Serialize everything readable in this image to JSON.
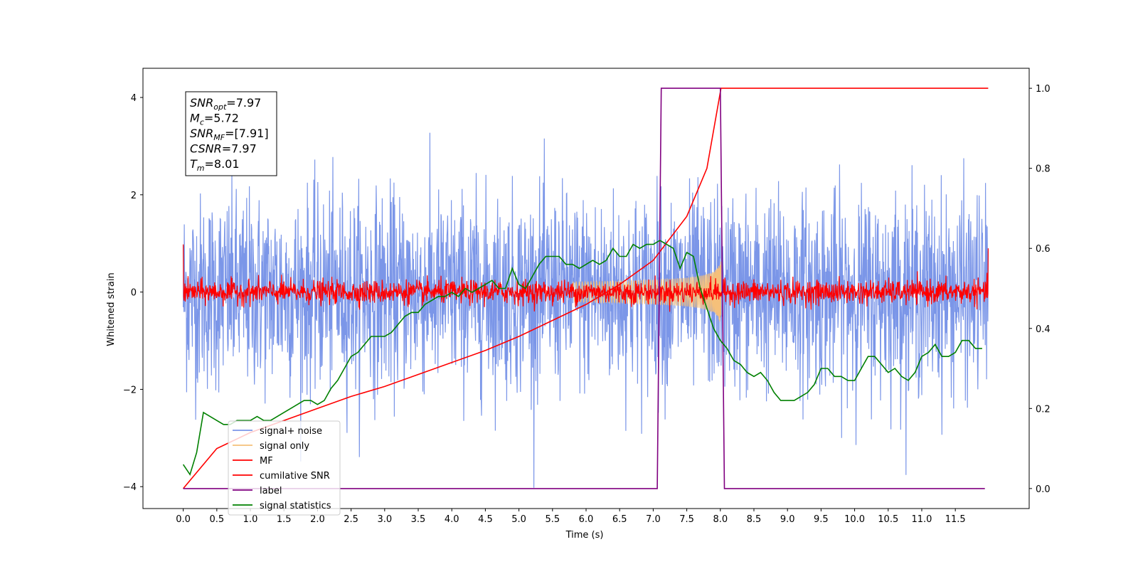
{
  "chart_data": {
    "type": "line",
    "xlabel": "Time (s)",
    "ylabel": "Whitened strain",
    "xlim": [
      -0.6,
      12.6
    ],
    "ylim_left": [
      -4.45,
      4.6
    ],
    "ylim_right": [
      -0.05,
      1.05
    ],
    "x_ticks": [
      0.0,
      0.5,
      1.0,
      1.5,
      2.0,
      2.5,
      3.0,
      3.5,
      4.0,
      4.5,
      5.0,
      5.5,
      6.0,
      6.5,
      7.0,
      7.5,
      8.0,
      8.5,
      9.0,
      9.5,
      10.0,
      10.5,
      11.0,
      11.5
    ],
    "x_tick_labels": [
      "0.0",
      "0.5",
      "1.0",
      "1.5",
      "2.0",
      "2.5",
      "3.0",
      "3.5",
      "4.0",
      "4.5",
      "5.0",
      "5.5",
      "6.0",
      "6.5",
      "7.0",
      "7.5",
      "8.0",
      "8.5",
      "9.0",
      "9.5",
      "10.0",
      "10.5",
      "11.0",
      "11.5"
    ],
    "y_left_ticks": [
      -4,
      -2,
      0,
      2,
      4
    ],
    "y_left_tick_labels": [
      "−4",
      "−2",
      "0",
      "2",
      "4"
    ],
    "y_right_ticks": [
      0.0,
      0.2,
      0.4,
      0.6,
      0.8,
      1.0
    ],
    "y_right_tick_labels": [
      "0.0",
      "0.2",
      "0.4",
      "0.6",
      "0.8",
      "1.0"
    ],
    "series": [
      {
        "name": "signal+ noise",
        "color": "#7b96e8",
        "axis": "left",
        "kind": "noise",
        "x_range": [
          0.0,
          11.99
        ],
        "amplitude_std": 1.0
      },
      {
        "name": "signal only",
        "color": "#f5c07a",
        "axis": "left",
        "kind": "chirp",
        "x_range": [
          5.8,
          8.01
        ],
        "envelope_peak": 0.8
      },
      {
        "name": "MF",
        "color": "#ff0000",
        "axis": "left",
        "kind": "noise",
        "x_range": [
          0.0,
          11.99
        ],
        "amplitude_std": 0.12
      },
      {
        "name": "cumilative SNR",
        "color": "#ff0000",
        "axis": "right",
        "kind": "curve",
        "x": [
          0.0,
          0.5,
          1.0,
          1.5,
          2.0,
          2.5,
          3.0,
          3.5,
          4.0,
          4.5,
          5.0,
          5.5,
          6.0,
          6.5,
          7.0,
          7.5,
          7.8,
          8.01,
          8.02,
          11.99
        ],
        "y": [
          0.0,
          0.1,
          0.14,
          0.17,
          0.2,
          0.23,
          0.255,
          0.285,
          0.315,
          0.345,
          0.38,
          0.42,
          0.46,
          0.51,
          0.57,
          0.68,
          0.8,
          1.0,
          1.0,
          1.0
        ]
      },
      {
        "name": "label",
        "color": "#800080",
        "axis": "right",
        "kind": "step",
        "x": [
          0.0,
          7.06,
          7.12,
          8.0,
          8.06,
          11.94
        ],
        "y": [
          0.0,
          0.0,
          1.0,
          1.0,
          0.0,
          0.0
        ]
      },
      {
        "name": "signal statistics",
        "color": "#008000",
        "axis": "right",
        "kind": "curve",
        "x": [
          0.0,
          0.1,
          0.2,
          0.3,
          0.4,
          0.5,
          0.6,
          0.7,
          0.8,
          0.9,
          1.0,
          1.1,
          1.2,
          1.3,
          1.4,
          1.5,
          1.6,
          1.7,
          1.8,
          1.9,
          2.0,
          2.1,
          2.2,
          2.3,
          2.4,
          2.5,
          2.6,
          2.7,
          2.8,
          2.9,
          3.0,
          3.1,
          3.2,
          3.3,
          3.4,
          3.5,
          3.6,
          3.7,
          3.8,
          3.9,
          4.0,
          4.1,
          4.2,
          4.3,
          4.4,
          4.5,
          4.6,
          4.7,
          4.8,
          4.9,
          5.0,
          5.1,
          5.2,
          5.3,
          5.4,
          5.5,
          5.6,
          5.7,
          5.8,
          5.9,
          6.0,
          6.1,
          6.2,
          6.3,
          6.4,
          6.5,
          6.6,
          6.7,
          6.8,
          6.9,
          7.0,
          7.1,
          7.2,
          7.3,
          7.4,
          7.5,
          7.6,
          7.7,
          7.8,
          7.9,
          8.0,
          8.1,
          8.2,
          8.3,
          8.4,
          8.5,
          8.6,
          8.7,
          8.8,
          8.9,
          9.0,
          9.1,
          9.2,
          9.3,
          9.4,
          9.5,
          9.6,
          9.7,
          9.8,
          9.9,
          10.0,
          10.1,
          10.2,
          10.3,
          10.4,
          10.5,
          10.6,
          10.7,
          10.8,
          10.9,
          11.0,
          11.1,
          11.2,
          11.3,
          11.4,
          11.5,
          11.6,
          11.7,
          11.8,
          11.9
        ],
        "y": [
          0.06,
          0.035,
          0.09,
          0.19,
          0.18,
          0.17,
          0.16,
          0.16,
          0.17,
          0.17,
          0.17,
          0.18,
          0.17,
          0.17,
          0.18,
          0.19,
          0.2,
          0.21,
          0.22,
          0.22,
          0.21,
          0.22,
          0.25,
          0.27,
          0.3,
          0.33,
          0.34,
          0.36,
          0.38,
          0.38,
          0.38,
          0.39,
          0.41,
          0.43,
          0.44,
          0.44,
          0.46,
          0.47,
          0.48,
          0.48,
          0.49,
          0.48,
          0.5,
          0.49,
          0.5,
          0.51,
          0.52,
          0.5,
          0.5,
          0.55,
          0.51,
          0.5,
          0.53,
          0.56,
          0.58,
          0.58,
          0.58,
          0.56,
          0.56,
          0.55,
          0.56,
          0.57,
          0.56,
          0.57,
          0.6,
          0.58,
          0.58,
          0.61,
          0.6,
          0.61,
          0.61,
          0.62,
          0.61,
          0.6,
          0.55,
          0.59,
          0.58,
          0.5,
          0.45,
          0.4,
          0.37,
          0.35,
          0.32,
          0.31,
          0.29,
          0.28,
          0.29,
          0.27,
          0.24,
          0.22,
          0.22,
          0.22,
          0.23,
          0.24,
          0.26,
          0.3,
          0.3,
          0.28,
          0.28,
          0.27,
          0.27,
          0.3,
          0.33,
          0.33,
          0.31,
          0.29,
          0.3,
          0.28,
          0.27,
          0.29,
          0.33,
          0.34,
          0.36,
          0.33,
          0.33,
          0.34,
          0.37,
          0.37,
          0.35,
          0.35
        ]
      }
    ],
    "legend": {
      "placement": "lower-left",
      "entries": [
        {
          "label": "signal+ noise",
          "color": "#7b96e8"
        },
        {
          "label": "signal only",
          "color": "#f5c07a"
        },
        {
          "label": "MF",
          "color": "#ff0000"
        },
        {
          "label": "cumilative SNR",
          "color": "#ff0000"
        },
        {
          "label": "label",
          "color": "#800080"
        },
        {
          "label": "signal statistics",
          "color": "#008000"
        }
      ]
    },
    "stats_box": {
      "placement": "top-left",
      "lines": [
        {
          "main": "SNR",
          "sub": "opt",
          "rest": "=7.97"
        },
        {
          "main": "M",
          "sub": "c",
          "rest": "=5.72"
        },
        {
          "main": "SNR",
          "sub": "MF",
          "rest": "=[7.91]"
        },
        {
          "main": "CSNR",
          "sub": "",
          "rest": "=7.97"
        },
        {
          "main": "T",
          "sub": "m",
          "rest": "=8.01"
        }
      ]
    },
    "grid": false
  }
}
